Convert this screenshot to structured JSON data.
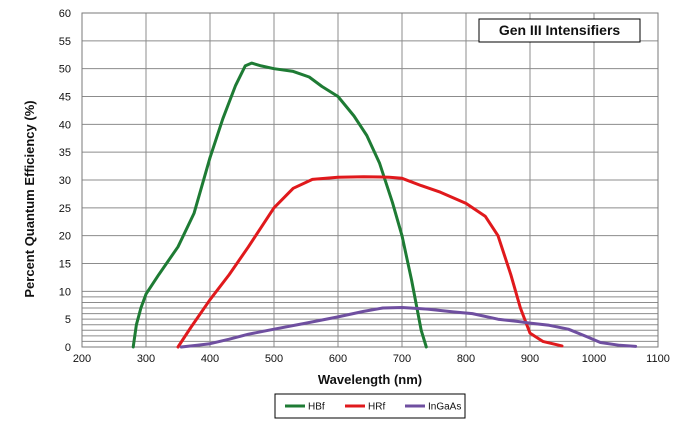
{
  "chart_data": {
    "type": "line",
    "title": "Gen III Intensifiers",
    "xlabel": "Wavelength (nm)",
    "ylabel": "Percent Quantum Efficiency (%)",
    "xlim": [
      200,
      1100
    ],
    "ylim": [
      0,
      60
    ],
    "x_ticks": [
      200,
      300,
      400,
      500,
      600,
      700,
      800,
      900,
      1000,
      1100
    ],
    "y_ticks": [
      0,
      5,
      10,
      15,
      20,
      25,
      30,
      35,
      40,
      45,
      50,
      55,
      60
    ],
    "extra_gridlines_y": [
      1,
      2,
      3,
      4,
      6,
      7,
      8,
      9
    ],
    "grid": true,
    "legend_position": "bottom-center",
    "series": [
      {
        "name": "HBf",
        "color": "#1e7b34",
        "points": [
          [
            280,
            0
          ],
          [
            285,
            4
          ],
          [
            292,
            7
          ],
          [
            300,
            9.5
          ],
          [
            320,
            13
          ],
          [
            350,
            18
          ],
          [
            375,
            24
          ],
          [
            400,
            34
          ],
          [
            420,
            41
          ],
          [
            440,
            47
          ],
          [
            455,
            50.5
          ],
          [
            465,
            51
          ],
          [
            480,
            50.5
          ],
          [
            500,
            50
          ],
          [
            530,
            49.5
          ],
          [
            555,
            48.5
          ],
          [
            575,
            46.8
          ],
          [
            600,
            45
          ],
          [
            625,
            41.5
          ],
          [
            645,
            38
          ],
          [
            665,
            33
          ],
          [
            685,
            26
          ],
          [
            700,
            20
          ],
          [
            715,
            12
          ],
          [
            730,
            3
          ],
          [
            738,
            0
          ]
        ]
      },
      {
        "name": "HRf",
        "color": "#e0191c",
        "points": [
          [
            350,
            0
          ],
          [
            370,
            3.5
          ],
          [
            400,
            8.5
          ],
          [
            430,
            13
          ],
          [
            460,
            18
          ],
          [
            480,
            21.5
          ],
          [
            500,
            25
          ],
          [
            530,
            28.5
          ],
          [
            560,
            30.1
          ],
          [
            600,
            30.5
          ],
          [
            640,
            30.6
          ],
          [
            680,
            30.5
          ],
          [
            700,
            30.3
          ],
          [
            730,
            29
          ],
          [
            760,
            27.8
          ],
          [
            800,
            25.8
          ],
          [
            830,
            23.5
          ],
          [
            850,
            20
          ],
          [
            870,
            13
          ],
          [
            885,
            7
          ],
          [
            900,
            2.5
          ],
          [
            920,
            1
          ],
          [
            950,
            0.2
          ]
        ]
      },
      {
        "name": "InGaAs",
        "color": "#6f4fa0",
        "points": [
          [
            355,
            0
          ],
          [
            380,
            0.3
          ],
          [
            400,
            0.6
          ],
          [
            430,
            1.4
          ],
          [
            460,
            2.3
          ],
          [
            500,
            3.2
          ],
          [
            550,
            4.3
          ],
          [
            600,
            5.4
          ],
          [
            640,
            6.4
          ],
          [
            670,
            7.0
          ],
          [
            700,
            7.1
          ],
          [
            740,
            6.8
          ],
          [
            780,
            6.3
          ],
          [
            810,
            6.0
          ],
          [
            850,
            5.0
          ],
          [
            880,
            4.6
          ],
          [
            900,
            4.3
          ],
          [
            930,
            3.9
          ],
          [
            960,
            3.2
          ],
          [
            990,
            1.8
          ],
          [
            1010,
            0.8
          ],
          [
            1040,
            0.3
          ],
          [
            1065,
            0.1
          ]
        ]
      }
    ]
  }
}
